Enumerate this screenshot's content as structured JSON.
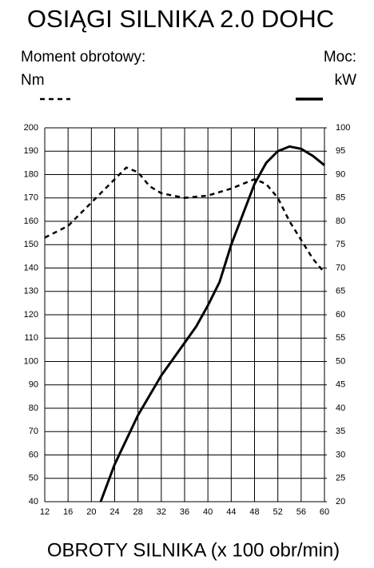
{
  "chart_data": {
    "type": "line",
    "title": "OSIĄGI SILNIKA 2.0 DOHC",
    "x_label": "OBROTY SILNIKA (x 100 obr/min)",
    "xlim": [
      12,
      60
    ],
    "xticks": [
      12,
      16,
      20,
      24,
      28,
      32,
      36,
      40,
      44,
      48,
      52,
      56,
      60
    ],
    "ylim": [
      40,
      200
    ],
    "yticks": [
      40,
      50,
      60,
      70,
      80,
      90,
      100,
      110,
      120,
      130,
      140,
      150,
      160,
      170,
      180,
      190,
      200
    ],
    "y2lim": [
      20,
      100
    ],
    "y2ticks": [
      20,
      25,
      30,
      35,
      40,
      45,
      50,
      55,
      60,
      65,
      70,
      75,
      80,
      85,
      90,
      95,
      100
    ],
    "grid": true,
    "series": [
      {
        "name": "Moment obrotowy:",
        "unit": "Nm",
        "color": "#000000",
        "dashed": true,
        "x": [
          12,
          16,
          20,
          24,
          26,
          28,
          30,
          32,
          36,
          40,
          44,
          48,
          50,
          52,
          54,
          56,
          58,
          60
        ],
        "values": [
          153,
          158,
          168,
          178,
          183,
          181,
          175,
          172,
          170,
          171,
          174,
          178,
          176,
          170,
          160,
          152,
          144,
          138
        ]
      },
      {
        "name": "Moc:",
        "unit": "kW",
        "color": "#000000",
        "dashed": false,
        "axis": "y2",
        "x": [
          21.6,
          24,
          28,
          32,
          36,
          38,
          40,
          42,
          44,
          46,
          48,
          50,
          52,
          54,
          56,
          58,
          60
        ],
        "values": [
          20,
          28,
          38.5,
          47,
          54,
          57.5,
          62,
          67,
          75,
          81.5,
          88,
          92.5,
          95,
          96,
          95.5,
          94,
          92
        ]
      }
    ]
  }
}
